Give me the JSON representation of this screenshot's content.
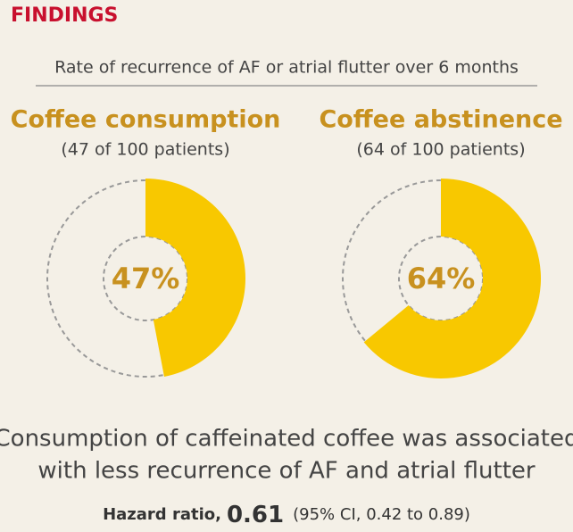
{
  "header": "FINDINGS",
  "subtitle": "Rate of recurrence of AF or atrial flutter over 6 months",
  "chart_data": [
    {
      "type": "pie",
      "title": "Coffee consumption",
      "subtitle": "(47 of 100 patients)",
      "values": [
        47
      ],
      "value_labels": [
        "47%"
      ],
      "color": "#f8c800"
    },
    {
      "type": "pie",
      "title": "Coffee abstinence",
      "subtitle": "(64 of 100 patients)",
      "values": [
        64
      ],
      "value_labels": [
        "64%"
      ],
      "color": "#f8c800"
    }
  ],
  "conclusion": [
    "Consumption of caffeinated coffee was associated",
    "with less recurrence of AF and atrial flutter"
  ],
  "hazard_ratio": {
    "label": "Hazard ratio,",
    "value": "0.61",
    "ci": "(95% CI, 0.42 to 0.89)"
  }
}
